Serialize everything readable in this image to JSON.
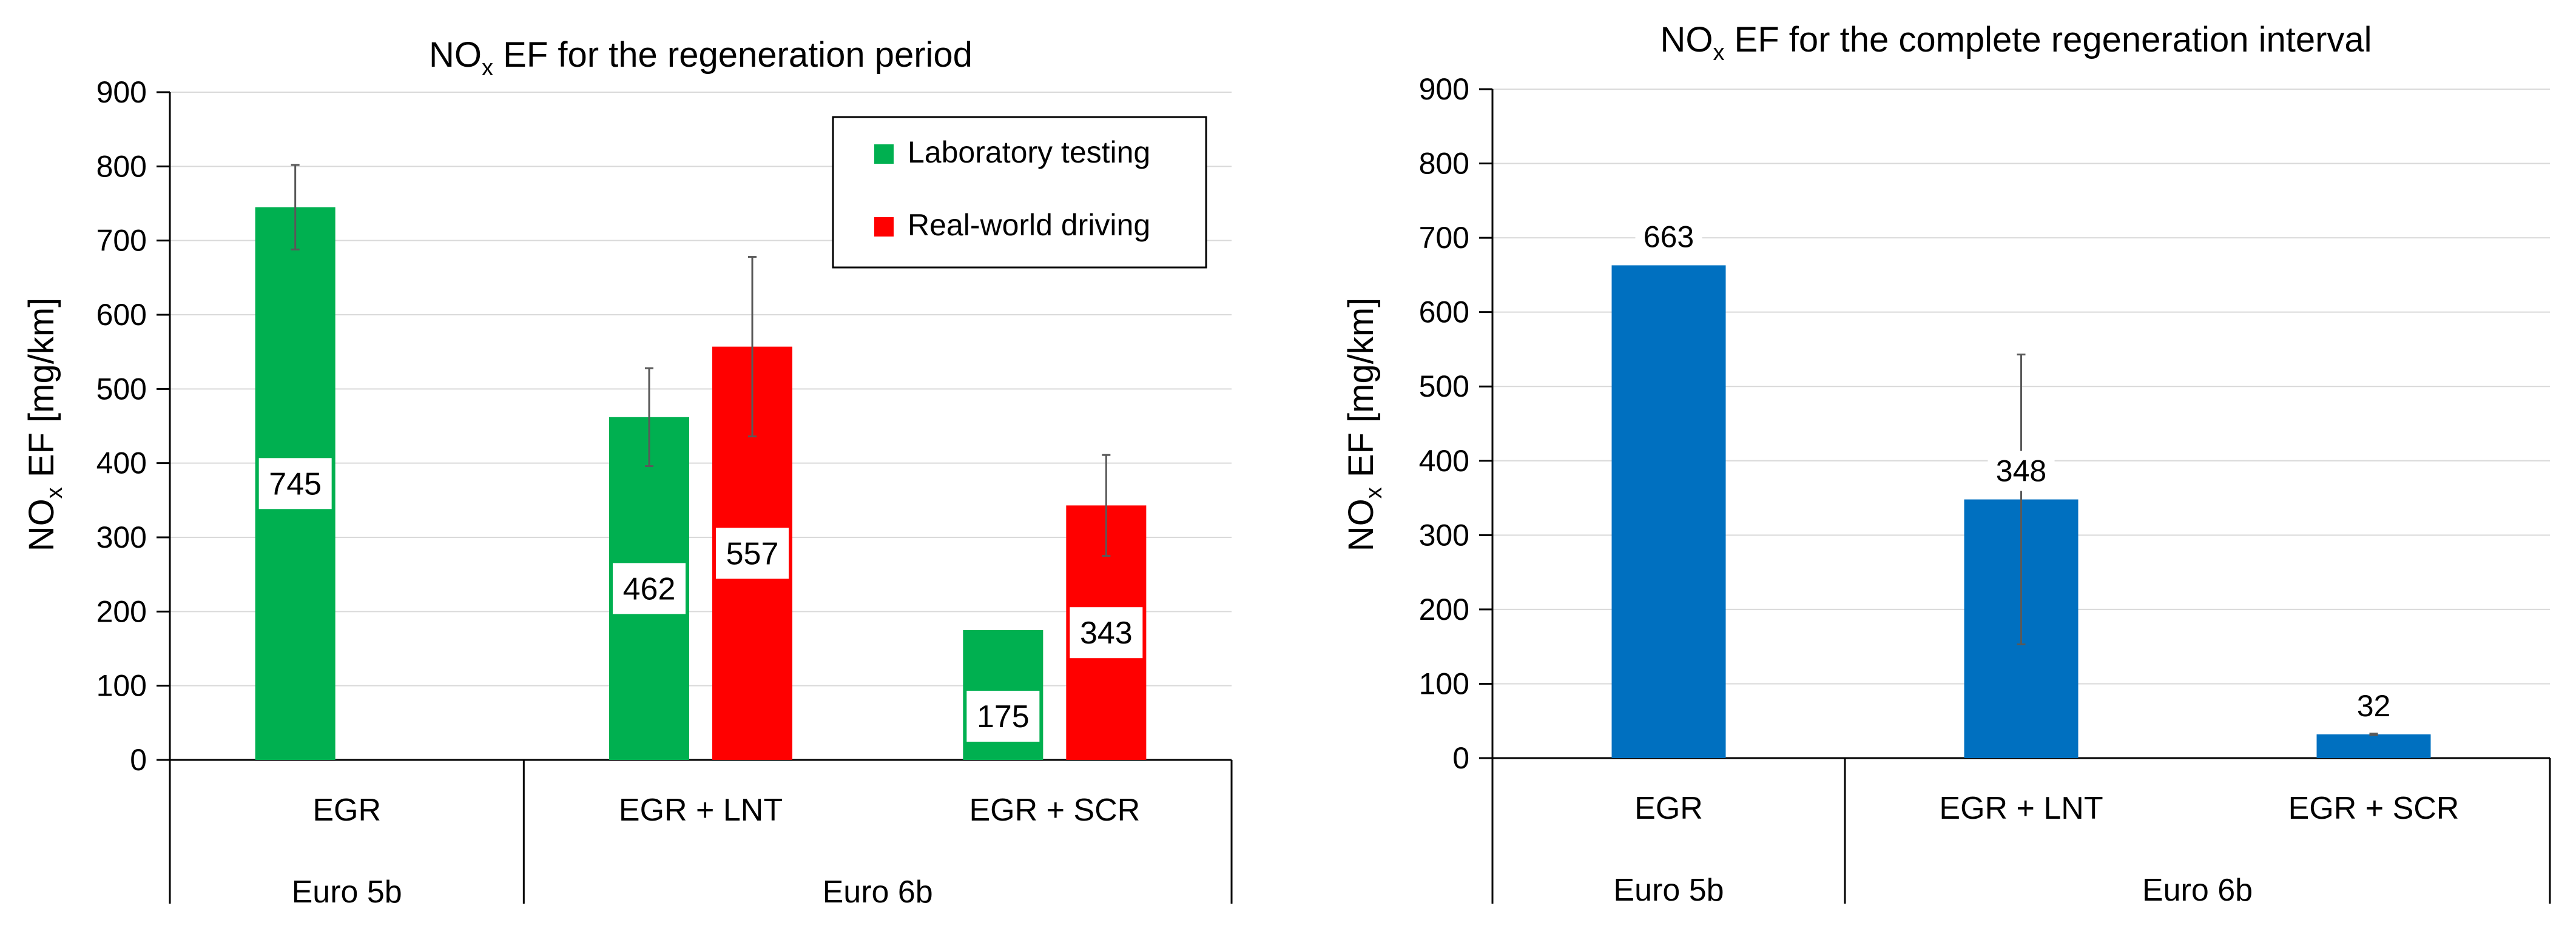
{
  "colors": {
    "lab": "#00b050",
    "real": "#ff0000",
    "total": "#0070c0",
    "grid": "#d9d9d9",
    "axis": "#000000",
    "error": "#595959"
  },
  "chart_data": [
    {
      "type": "bar",
      "title_main": "NO",
      "title_sub": "x",
      "title_rest": " EF for the regeneration period",
      "ylabel_main": "NO",
      "ylabel_sub": "x",
      "ylabel_rest": " EF [mg/km]",
      "ylim": [
        0,
        900
      ],
      "yticks": [
        0,
        100,
        200,
        300,
        400,
        500,
        600,
        700,
        800,
        900
      ],
      "grid": true,
      "legend_position": "top-right",
      "categories": [
        "EGR",
        "EGR + LNT",
        "EGR + SCR"
      ],
      "groups": [
        {
          "label": "Euro 5b",
          "span": 1
        },
        {
          "label": "Euro 6b",
          "span": 2
        }
      ],
      "series": [
        {
          "name": "Laboratory testing",
          "color_key": "lab",
          "values": [
            745,
            462,
            175
          ],
          "errors": [
            57,
            66,
            null
          ]
        },
        {
          "name": "Real-world driving",
          "color_key": "real",
          "values": [
            null,
            557,
            343
          ],
          "errors": [
            null,
            121,
            68
          ]
        }
      ]
    },
    {
      "type": "bar",
      "title_main": "NO",
      "title_sub": "x",
      "title_rest": " EF for the complete regeneration interval",
      "ylabel_main": "NO",
      "ylabel_sub": "x",
      "ylabel_rest": " EF [mg/km]",
      "ylim": [
        0,
        900
      ],
      "yticks": [
        0,
        100,
        200,
        300,
        400,
        500,
        600,
        700,
        800,
        900
      ],
      "grid": true,
      "categories": [
        "EGR",
        "EGR + LNT",
        "EGR + SCR"
      ],
      "groups": [
        {
          "label": "Euro 5b",
          "span": 1
        },
        {
          "label": "Euro 6b",
          "span": 2
        }
      ],
      "series": [
        {
          "name": "Complete regeneration interval",
          "color_key": "total",
          "values": [
            663,
            348,
            32
          ],
          "errors": [
            0,
            195,
            1
          ]
        }
      ]
    }
  ]
}
